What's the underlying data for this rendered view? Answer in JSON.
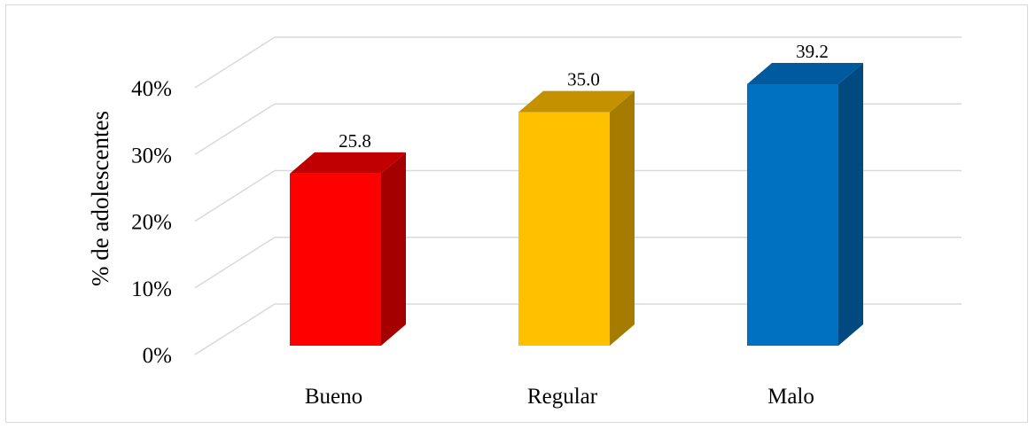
{
  "chart_data": {
    "type": "bar",
    "style": "3d-column",
    "categories": [
      "Bueno",
      "Regular",
      "Malo"
    ],
    "values": [
      25.8,
      35.0,
      39.2
    ],
    "data_labels": [
      "25.8",
      "35.0",
      "39.2"
    ],
    "title": "",
    "xlabel": "",
    "ylabel": "% de  adolescentes",
    "ylim": [
      0,
      40
    ],
    "y_ticks": [
      0,
      10,
      20,
      30,
      40
    ],
    "y_tick_labels": [
      "0%",
      "10%",
      "20%",
      "30%",
      "40%"
    ],
    "grid": true,
    "legend": "none",
    "colors": {
      "Bueno": {
        "front": "#ff0000",
        "side": "#a50000",
        "top": "#c00000"
      },
      "Regular": {
        "front": "#ffc000",
        "side": "#a67c00",
        "top": "#c49200"
      },
      "Malo": {
        "front": "#0070c0",
        "side": "#004a80",
        "top": "#005a9e"
      },
      "grid": "#d9d9d9"
    }
  }
}
